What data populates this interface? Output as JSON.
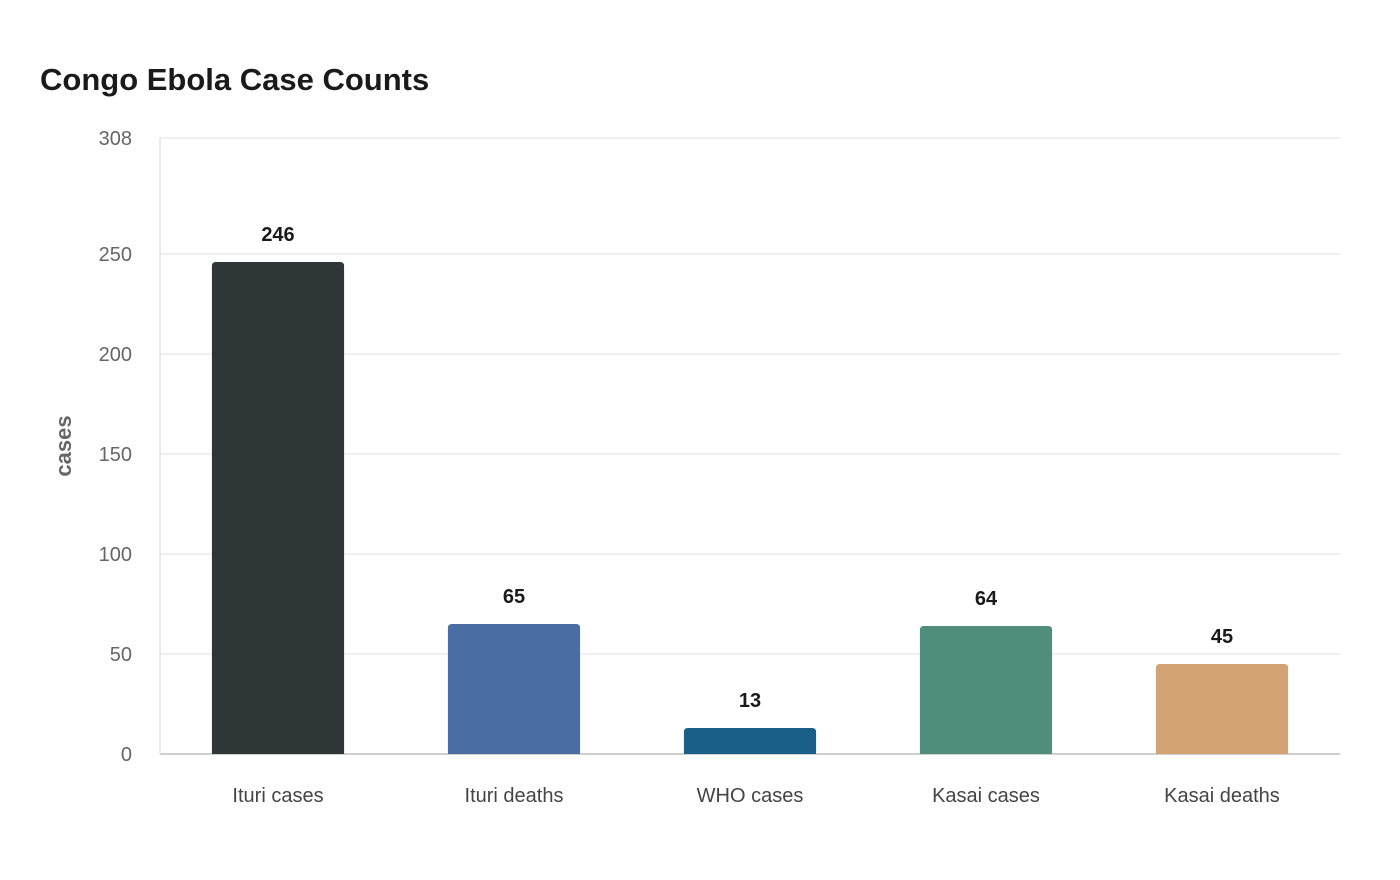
{
  "chart_data": {
    "type": "bar",
    "title": "Congo Ebola Case Counts",
    "xlabel": "",
    "ylabel": "cases",
    "ylim": [
      0,
      308
    ],
    "yticks": [
      0,
      50,
      100,
      150,
      200,
      250,
      308
    ],
    "grid": true,
    "categories": [
      "Ituri cases",
      "Ituri deaths",
      "WHO cases",
      "Kasai cases",
      "Kasai deaths"
    ],
    "values": [
      246,
      65,
      13,
      64,
      45
    ],
    "colors": [
      "#2e3638",
      "#4a6ea3",
      "#1a5f88",
      "#4e8e7b",
      "#d3a373"
    ]
  }
}
